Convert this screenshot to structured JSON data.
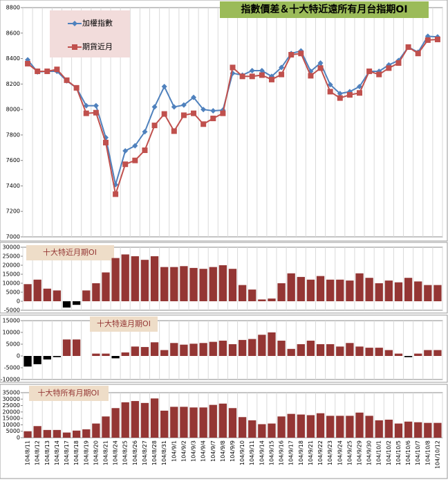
{
  "chart_data": [
    {
      "type": "line",
      "title": "指數價差＆十大特近遠所有月台指期OI",
      "ylim": [
        7000,
        8800
      ],
      "yticks": [
        7000,
        7200,
        7400,
        7600,
        7800,
        8000,
        8200,
        8400,
        8600,
        8800
      ],
      "series": [
        {
          "name": "加權指數",
          "color": "#4f81bd",
          "marker": "diamond",
          "values": [
            8390,
            8295,
            8300,
            8300,
            8225,
            8170,
            8030,
            8030,
            7780,
            7410,
            7675,
            7715,
            7825,
            8020,
            8180,
            8020,
            8035,
            8095,
            8000,
            7990,
            7995,
            8285,
            8270,
            8305,
            8305,
            8260,
            8330,
            8440,
            8460,
            8300,
            8365,
            8195,
            8125,
            8140,
            8180,
            8300,
            8300,
            8350,
            8385,
            8490,
            8450,
            8575,
            8570
          ]
        },
        {
          "name": "期貨近月",
          "color": "#c0504d",
          "marker": "square",
          "values": [
            8360,
            8300,
            8300,
            8315,
            8230,
            8170,
            7970,
            7975,
            7740,
            7335,
            7570,
            7600,
            7680,
            7875,
            7965,
            7830,
            7955,
            7970,
            7885,
            7930,
            7970,
            8330,
            8260,
            8260,
            8270,
            8235,
            8275,
            8430,
            8440,
            8265,
            8325,
            8140,
            8090,
            8115,
            8130,
            8300,
            8275,
            8325,
            8365,
            8490,
            8440,
            8545,
            8550
          ]
        }
      ]
    },
    {
      "type": "bar",
      "title": "十大特近月期OI",
      "color": "#943634",
      "negative_color": "#000000",
      "ylim": [
        -5000,
        30000
      ],
      "yticks": [
        -5000,
        0,
        5000,
        10000,
        15000,
        20000,
        25000,
        30000
      ],
      "values": [
        9500,
        12000,
        7000,
        6000,
        -3500,
        -2000,
        6000,
        10000,
        16000,
        24000,
        26000,
        25000,
        23000,
        25000,
        19000,
        19000,
        19500,
        18500,
        18000,
        19000,
        20000,
        18000,
        9000,
        6500,
        1000,
        1500,
        10000,
        15500,
        13500,
        12000,
        14000,
        12000,
        12000,
        11500,
        15500,
        13000,
        10000,
        11500,
        10500,
        13000,
        11000,
        9000,
        9000
      ]
    },
    {
      "type": "bar",
      "title": "十大特遠月期OI",
      "color": "#943634",
      "negative_color": "#000000",
      "ylim": [
        -10000,
        15000
      ],
      "yticks": [
        -10000,
        -5000,
        0,
        5000,
        10000,
        15000
      ],
      "values": [
        -4500,
        -3500,
        -1500,
        -500,
        7000,
        7000,
        0,
        1000,
        1000,
        -1000,
        1500,
        4000,
        3800,
        5800,
        2500,
        5500,
        4800,
        5200,
        5500,
        6000,
        6500,
        5000,
        6800,
        7200,
        9000,
        10000,
        6500,
        3000,
        5000,
        6500,
        5000,
        5000,
        4000,
        5500,
        4000,
        3500,
        3500,
        2500,
        1000,
        -500,
        1000,
        2500,
        2500
      ]
    },
    {
      "type": "bar",
      "title": "十大特所有月期OI",
      "color": "#943634",
      "negative_color": "#000000",
      "ylim": [
        0,
        35000
      ],
      "yticks": [
        0,
        5000,
        10000,
        15000,
        20000,
        25000,
        30000,
        35000
      ],
      "categories": [
        "104/8/11",
        "104/8/12",
        "104/8/13",
        "104/8/14",
        "104/8/17",
        "104/8/18",
        "104/8/19",
        "104/8/20",
        "104/8/21",
        "104/8/24",
        "104/8/25",
        "104/8/26",
        "104/8/27",
        "104/8/28",
        "104/8/31",
        "104/9/1",
        "104/9/2",
        "104/9/3",
        "104/9/4",
        "104/9/7",
        "104/9/8",
        "104/9/9",
        "104/9/10",
        "104/9/11",
        "104/9/14",
        "104/9/15",
        "104/9/16",
        "104/9/17",
        "104/9/18",
        "104/9/21",
        "104/9/22",
        "104/9/23",
        "104/9/24",
        "104/9/25",
        "104/9/29",
        "104/9/30",
        "104/10/1",
        "104/10/2",
        "104/10/5",
        "104/10/6",
        "104/10/7",
        "104/10/8",
        "104/10/12"
      ],
      "values": [
        5000,
        9000,
        6000,
        6000,
        4000,
        5500,
        6500,
        11000,
        16500,
        23000,
        27500,
        28500,
        27000,
        30500,
        21000,
        24000,
        24000,
        23500,
        23500,
        25500,
        26500,
        23000,
        16000,
        13500,
        10500,
        11000,
        16500,
        18500,
        18000,
        17500,
        19000,
        17000,
        17000,
        17000,
        19500,
        17000,
        13500,
        14000,
        11000,
        12500,
        12000,
        11500,
        11500
      ]
    }
  ]
}
